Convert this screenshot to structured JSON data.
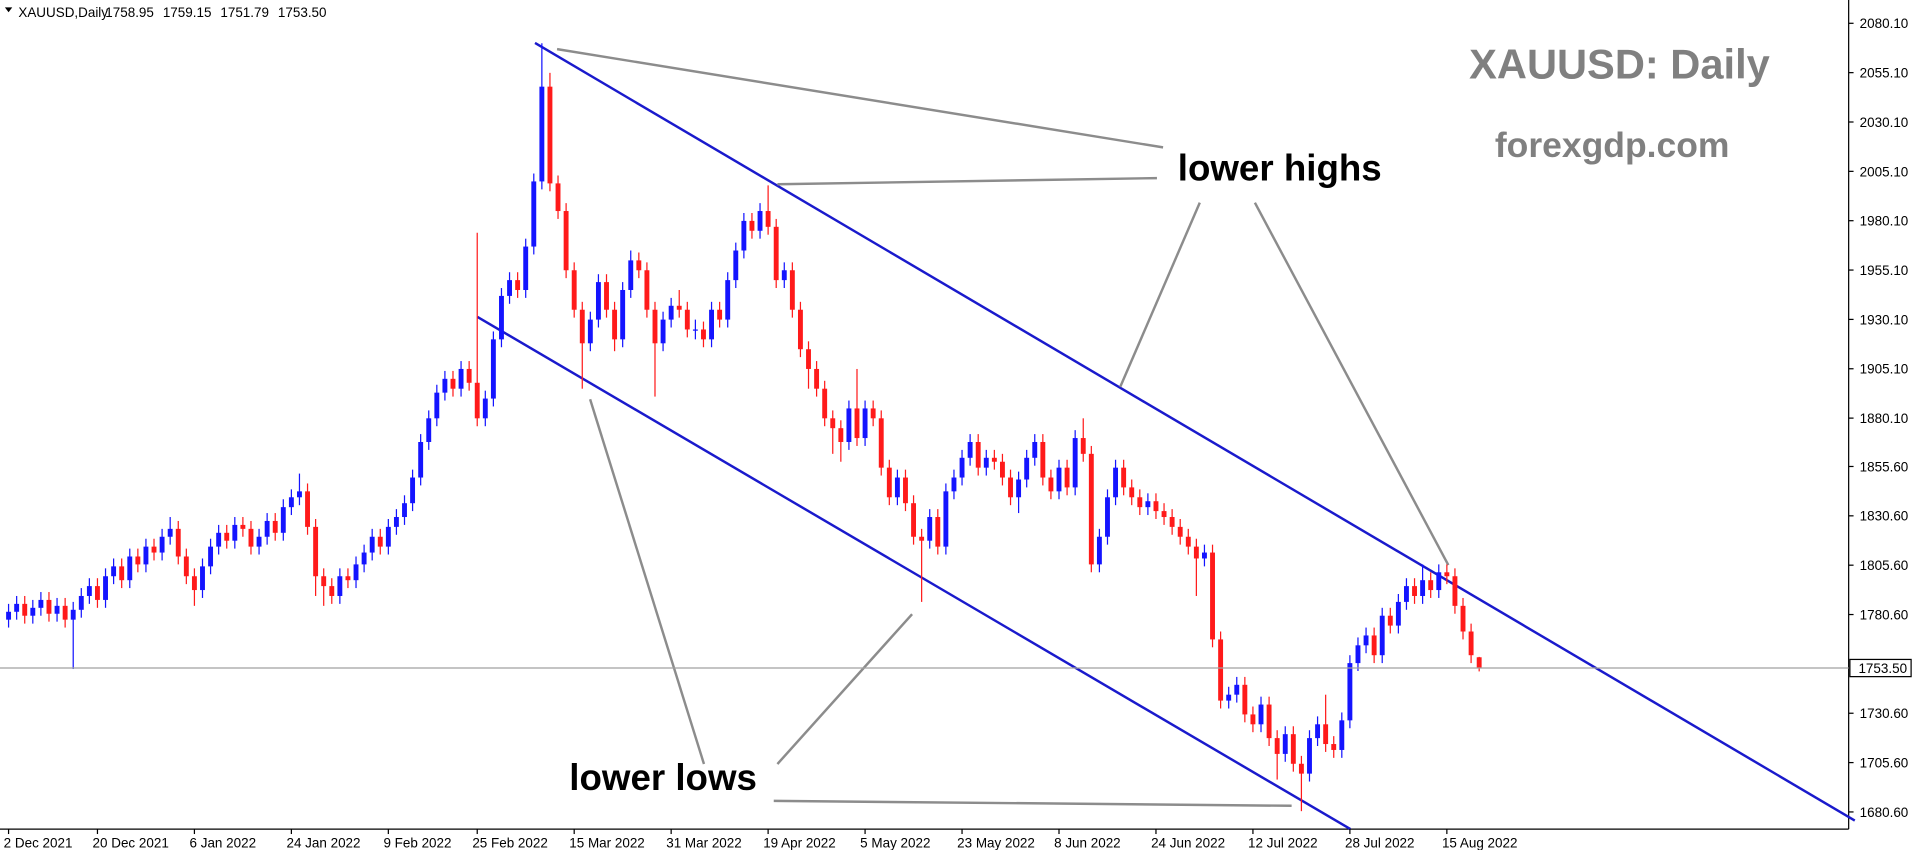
{
  "chart_data": {
    "type": "candlestick",
    "header": {
      "symbol": "XAUUSD,Daily",
      "ohlc_labels": [
        "1758.95",
        "1759.15",
        "1751.79",
        "1753.50"
      ]
    },
    "title": "XAUUSD: Daily",
    "subtitle": "forexgdp.com",
    "annotations": [
      "lower highs",
      "lower lows"
    ],
    "up_color": "#1414ff",
    "down_color": "#ff1a1a",
    "ylim": [
      1671.9,
      2091.9
    ],
    "yticks": [
      {
        "value": 2080.1,
        "label": "2080.10"
      },
      {
        "value": 2055.1,
        "label": "2055.10"
      },
      {
        "value": 2030.1,
        "label": "2030.10"
      },
      {
        "value": 2005.1,
        "label": "2005.10"
      },
      {
        "value": 1980.1,
        "label": "1980.10"
      },
      {
        "value": 1955.1,
        "label": "1955.10"
      },
      {
        "value": 1930.1,
        "label": "1930.10"
      },
      {
        "value": 1905.1,
        "label": "1905.10"
      },
      {
        "value": 1880.1,
        "label": "1880.10"
      },
      {
        "value": 1855.6,
        "label": "1855.60"
      },
      {
        "value": 1830.6,
        "label": "1830.60"
      },
      {
        "value": 1805.6,
        "label": "1805.60"
      },
      {
        "value": 1780.6,
        "label": "1780.60"
      },
      {
        "value": 1730.6,
        "label": "1730.60"
      },
      {
        "value": 1705.6,
        "label": "1705.60"
      },
      {
        "value": 1680.6,
        "label": "1680.60"
      }
    ],
    "last_price": {
      "value": 1753.5,
      "label": "1753.50"
    },
    "categories": [
      "2 Dec 2021",
      null,
      null,
      null,
      null,
      null,
      null,
      null,
      null,
      null,
      null,
      "20 Dec 2021",
      null,
      null,
      null,
      null,
      null,
      null,
      null,
      null,
      null,
      null,
      null,
      "6 Jan 2022",
      null,
      null,
      null,
      null,
      null,
      null,
      null,
      null,
      null,
      null,
      null,
      "24 Jan 2022",
      null,
      null,
      null,
      null,
      null,
      null,
      null,
      null,
      null,
      null,
      null,
      "9 Feb 2022",
      null,
      null,
      null,
      null,
      null,
      null,
      null,
      null,
      null,
      null,
      "25 Feb 2022",
      null,
      null,
      null,
      null,
      null,
      null,
      null,
      null,
      null,
      null,
      null,
      "15 Mar 2022",
      null,
      null,
      null,
      null,
      null,
      null,
      null,
      null,
      null,
      null,
      null,
      "31 Mar 2022",
      null,
      null,
      null,
      null,
      null,
      null,
      null,
      null,
      null,
      null,
      null,
      "19 Apr 2022",
      null,
      null,
      null,
      null,
      null,
      null,
      null,
      null,
      null,
      null,
      null,
      "5 May 2022",
      null,
      null,
      null,
      null,
      null,
      null,
      null,
      null,
      null,
      null,
      null,
      "23 May 2022",
      null,
      null,
      null,
      null,
      null,
      null,
      null,
      null,
      null,
      null,
      null,
      "8 Jun 2022",
      null,
      null,
      null,
      null,
      null,
      null,
      null,
      null,
      null,
      null,
      null,
      "24 Jun 2022",
      null,
      null,
      null,
      null,
      null,
      null,
      null,
      null,
      null,
      null,
      null,
      "12 Jul 2022",
      null,
      null,
      null,
      null,
      null,
      null,
      null,
      null,
      null,
      null,
      null,
      "28 Jul 2022",
      null,
      null,
      null,
      null,
      null,
      null,
      null,
      null,
      null,
      null,
      null,
      "15 Aug 2022",
      null,
      null,
      null,
      null
    ],
    "candles": [
      [
        1778,
        1786,
        1774,
        1782
      ],
      [
        1782,
        1790,
        1778,
        1786
      ],
      [
        1786,
        1790,
        1776,
        1780
      ],
      [
        1780,
        1788,
        1776,
        1784
      ],
      [
        1784,
        1792,
        1780,
        1788
      ],
      [
        1788,
        1792,
        1777,
        1781
      ],
      [
        1781,
        1789,
        1777,
        1785
      ],
      [
        1785,
        1789,
        1774,
        1778
      ],
      [
        1778,
        1787,
        1753,
        1783
      ],
      [
        1783,
        1794,
        1779,
        1790
      ],
      [
        1790,
        1799,
        1786,
        1795
      ],
      [
        1795,
        1799,
        1784,
        1788
      ],
      [
        1788,
        1804,
        1784,
        1800
      ],
      [
        1800,
        1809,
        1796,
        1805
      ],
      [
        1805,
        1809,
        1794,
        1798
      ],
      [
        1798,
        1814,
        1794,
        1810
      ],
      [
        1810,
        1814,
        1802,
        1806
      ],
      [
        1806,
        1819,
        1802,
        1815
      ],
      [
        1815,
        1819,
        1808,
        1812
      ],
      [
        1812,
        1824,
        1808,
        1820
      ],
      [
        1820,
        1830,
        1816,
        1824
      ],
      [
        1824,
        1828,
        1806,
        1810
      ],
      [
        1810,
        1814,
        1796,
        1800
      ],
      [
        1800,
        1804,
        1785,
        1793
      ],
      [
        1793,
        1809,
        1789,
        1805
      ],
      [
        1805,
        1819,
        1801,
        1815
      ],
      [
        1815,
        1826,
        1811,
        1822
      ],
      [
        1822,
        1826,
        1814,
        1818
      ],
      [
        1818,
        1830,
        1814,
        1826
      ],
      [
        1826,
        1830,
        1820,
        1824
      ],
      [
        1824,
        1828,
        1811,
        1815
      ],
      [
        1815,
        1824,
        1811,
        1820
      ],
      [
        1820,
        1832,
        1816,
        1828
      ],
      [
        1828,
        1832,
        1818,
        1822
      ],
      [
        1822,
        1839,
        1818,
        1835
      ],
      [
        1835,
        1844,
        1831,
        1840
      ],
      [
        1840,
        1852,
        1836,
        1843
      ],
      [
        1843,
        1847,
        1821,
        1825
      ],
      [
        1825,
        1829,
        1790,
        1800
      ],
      [
        1800,
        1804,
        1785,
        1795
      ],
      [
        1795,
        1799,
        1786,
        1790
      ],
      [
        1790,
        1804,
        1786,
        1800
      ],
      [
        1800,
        1804,
        1794,
        1798
      ],
      [
        1798,
        1810,
        1794,
        1806
      ],
      [
        1806,
        1816,
        1802,
        1812
      ],
      [
        1812,
        1824,
        1808,
        1820
      ],
      [
        1820,
        1824,
        1811,
        1815
      ],
      [
        1815,
        1829,
        1811,
        1825
      ],
      [
        1825,
        1834,
        1821,
        1830
      ],
      [
        1830,
        1841,
        1826,
        1837
      ],
      [
        1837,
        1854,
        1833,
        1850
      ],
      [
        1850,
        1872,
        1846,
        1868
      ],
      [
        1868,
        1884,
        1864,
        1880
      ],
      [
        1880,
        1897,
        1876,
        1893
      ],
      [
        1893,
        1904,
        1889,
        1900
      ],
      [
        1900,
        1904,
        1891,
        1895
      ],
      [
        1895,
        1909,
        1891,
        1905
      ],
      [
        1905,
        1909,
        1894,
        1898
      ],
      [
        1898,
        1974,
        1876,
        1880
      ],
      [
        1880,
        1894,
        1876,
        1890
      ],
      [
        1890,
        1924,
        1886,
        1920
      ],
      [
        1920,
        1946,
        1916,
        1942
      ],
      [
        1942,
        1954,
        1938,
        1950
      ],
      [
        1950,
        1954,
        1941,
        1945
      ],
      [
        1945,
        1971,
        1941,
        1967
      ],
      [
        1967,
        2004,
        1963,
        2000
      ],
      [
        2000,
        2070,
        1996,
        2048
      ],
      [
        2048,
        2055,
        1995,
        1999
      ],
      [
        1999,
        2003,
        1981,
        1985
      ],
      [
        1985,
        1989,
        1951,
        1955
      ],
      [
        1955,
        1959,
        1931,
        1935
      ],
      [
        1935,
        1939,
        1895,
        1918
      ],
      [
        1918,
        1934,
        1914,
        1930
      ],
      [
        1930,
        1953,
        1926,
        1949
      ],
      [
        1949,
        1953,
        1931,
        1935
      ],
      [
        1935,
        1939,
        1914,
        1920
      ],
      [
        1920,
        1949,
        1916,
        1945
      ],
      [
        1945,
        1965,
        1941,
        1960
      ],
      [
        1960,
        1964,
        1951,
        1955
      ],
      [
        1955,
        1959,
        1931,
        1935
      ],
      [
        1935,
        1939,
        1891,
        1918
      ],
      [
        1918,
        1934,
        1914,
        1930
      ],
      [
        1930,
        1941,
        1926,
        1937
      ],
      [
        1937,
        1945,
        1931,
        1935
      ],
      [
        1935,
        1939,
        1921,
        1925
      ],
      [
        1925,
        1930,
        1920,
        1925
      ],
      [
        1925,
        1929,
        1916,
        1920
      ],
      [
        1920,
        1939,
        1916,
        1935
      ],
      [
        1935,
        1939,
        1926,
        1930
      ],
      [
        1930,
        1954,
        1926,
        1950
      ],
      [
        1950,
        1969,
        1946,
        1965
      ],
      [
        1965,
        1984,
        1961,
        1980
      ],
      [
        1980,
        1984,
        1971,
        1975
      ],
      [
        1975,
        1989,
        1971,
        1985
      ],
      [
        1985,
        1998,
        1973,
        1977
      ],
      [
        1977,
        1981,
        1946,
        1950
      ],
      [
        1950,
        1959,
        1946,
        1955
      ],
      [
        1955,
        1959,
        1931,
        1935
      ],
      [
        1935,
        1939,
        1911,
        1915
      ],
      [
        1915,
        1919,
        1895,
        1905
      ],
      [
        1905,
        1909,
        1891,
        1895
      ],
      [
        1895,
        1899,
        1876,
        1880
      ],
      [
        1880,
        1884,
        1862,
        1875
      ],
      [
        1875,
        1879,
        1858,
        1868
      ],
      [
        1868,
        1889,
        1864,
        1885
      ],
      [
        1885,
        1905,
        1866,
        1870
      ],
      [
        1870,
        1889,
        1866,
        1885
      ],
      [
        1885,
        1889,
        1876,
        1880
      ],
      [
        1880,
        1884,
        1851,
        1855
      ],
      [
        1855,
        1859,
        1836,
        1840
      ],
      [
        1840,
        1854,
        1836,
        1850
      ],
      [
        1850,
        1854,
        1833,
        1837
      ],
      [
        1837,
        1841,
        1816,
        1820
      ],
      [
        1820,
        1824,
        1787,
        1818
      ],
      [
        1818,
        1834,
        1814,
        1830
      ],
      [
        1830,
        1834,
        1811,
        1815
      ],
      [
        1815,
        1847,
        1811,
        1843
      ],
      [
        1843,
        1854,
        1839,
        1850
      ],
      [
        1850,
        1864,
        1846,
        1860
      ],
      [
        1860,
        1872,
        1856,
        1868
      ],
      [
        1868,
        1872,
        1851,
        1855
      ],
      [
        1855,
        1864,
        1851,
        1860
      ],
      [
        1860,
        1864,
        1854,
        1858
      ],
      [
        1858,
        1862,
        1846,
        1850
      ],
      [
        1850,
        1854,
        1836,
        1840
      ],
      [
        1840,
        1853,
        1832,
        1849
      ],
      [
        1849,
        1864,
        1845,
        1860
      ],
      [
        1860,
        1872,
        1856,
        1868
      ],
      [
        1868,
        1872,
        1846,
        1850
      ],
      [
        1850,
        1854,
        1839,
        1843
      ],
      [
        1843,
        1859,
        1839,
        1855
      ],
      [
        1855,
        1859,
        1841,
        1845
      ],
      [
        1845,
        1874,
        1841,
        1870
      ],
      [
        1870,
        1880,
        1858,
        1862
      ],
      [
        1862,
        1866,
        1802,
        1806
      ],
      [
        1806,
        1824,
        1802,
        1820
      ],
      [
        1820,
        1844,
        1816,
        1840
      ],
      [
        1840,
        1859,
        1836,
        1855
      ],
      [
        1855,
        1859,
        1841,
        1845
      ],
      [
        1845,
        1849,
        1836,
        1840
      ],
      [
        1840,
        1844,
        1831,
        1835
      ],
      [
        1835,
        1842,
        1831,
        1838
      ],
      [
        1838,
        1842,
        1829,
        1833
      ],
      [
        1833,
        1837,
        1826,
        1830
      ],
      [
        1830,
        1834,
        1821,
        1825
      ],
      [
        1825,
        1829,
        1816,
        1820
      ],
      [
        1820,
        1824,
        1811,
        1815
      ],
      [
        1815,
        1819,
        1790,
        1809
      ],
      [
        1809,
        1816,
        1805,
        1812
      ],
      [
        1812,
        1816,
        1764,
        1768
      ],
      [
        1768,
        1772,
        1733,
        1737
      ],
      [
        1737,
        1744,
        1733,
        1740
      ],
      [
        1740,
        1749,
        1736,
        1745
      ],
      [
        1745,
        1749,
        1726,
        1730
      ],
      [
        1730,
        1734,
        1721,
        1725
      ],
      [
        1725,
        1739,
        1721,
        1735
      ],
      [
        1735,
        1739,
        1714,
        1718
      ],
      [
        1718,
        1722,
        1697,
        1710
      ],
      [
        1710,
        1724,
        1706,
        1720
      ],
      [
        1720,
        1724,
        1701,
        1705
      ],
      [
        1705,
        1709,
        1681,
        1700
      ],
      [
        1700,
        1722,
        1696,
        1718
      ],
      [
        1718,
        1729,
        1714,
        1725
      ],
      [
        1725,
        1740,
        1711,
        1715
      ],
      [
        1715,
        1719,
        1708,
        1712
      ],
      [
        1712,
        1731,
        1708,
        1727
      ],
      [
        1727,
        1760,
        1723,
        1756
      ],
      [
        1756,
        1769,
        1752,
        1765
      ],
      [
        1765,
        1774,
        1761,
        1770
      ],
      [
        1770,
        1774,
        1756,
        1760
      ],
      [
        1760,
        1784,
        1756,
        1780
      ],
      [
        1780,
        1784,
        1771,
        1775
      ],
      [
        1775,
        1791,
        1771,
        1787
      ],
      [
        1787,
        1799,
        1783,
        1795
      ],
      [
        1795,
        1799,
        1786,
        1790
      ],
      [
        1790,
        1806,
        1786,
        1798
      ],
      [
        1798,
        1802,
        1789,
        1793
      ],
      [
        1793,
        1806,
        1789,
        1802
      ],
      [
        1802,
        1806,
        1796,
        1800
      ],
      [
        1800,
        1804,
        1781,
        1785
      ],
      [
        1785,
        1789,
        1768,
        1772
      ],
      [
        1772,
        1776,
        1756,
        1760
      ],
      [
        1758.95,
        1759.15,
        1751.79,
        1753.5
      ]
    ]
  }
}
